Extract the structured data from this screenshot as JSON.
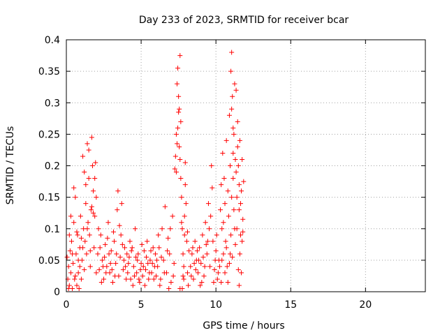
{
  "chart_data": {
    "type": "scatter",
    "title": "Day 233 of 2023, SRMTID for receiver bcar",
    "xlabel": "GPS time / hours",
    "ylabel": "SRMTID / TECUs",
    "xlim": [
      0,
      24
    ],
    "ylim": [
      0,
      0.4
    ],
    "xticks": [
      0,
      5,
      10,
      15,
      20
    ],
    "xtick_labels": [
      "0",
      "5",
      "10",
      "15",
      "20"
    ],
    "yticks": [
      0,
      0.05,
      0.1,
      0.15,
      0.2,
      0.25,
      0.3,
      0.35,
      0.4
    ],
    "ytick_labels": [
      "0",
      "0.05",
      "0.1",
      "0.15",
      "0.2",
      "0.25",
      "0.3",
      "0.35",
      "0.4"
    ],
    "grid": true,
    "marker": "+",
    "marker_color": "#ff0000",
    "series": [
      {
        "name": "SRMTID",
        "points": [
          [
            0.05,
            0.055
          ],
          [
            0.1,
            0.02
          ],
          [
            0.15,
            0.04
          ],
          [
            0.2,
            0.01
          ],
          [
            0.25,
            0.065
          ],
          [
            0.3,
            0.03
          ],
          [
            0.35,
            0.08
          ],
          [
            0.4,
            0.005
          ],
          [
            0.45,
            0.045
          ],
          [
            0.5,
            0.11
          ],
          [
            0.55,
            0.02
          ],
          [
            0.6,
            0.15
          ],
          [
            0.65,
            0.06
          ],
          [
            0.7,
            0.01
          ],
          [
            0.75,
            0.09
          ],
          [
            0.8,
            0.03
          ],
          [
            0.85,
            0.005
          ],
          [
            0.9,
            0.07
          ],
          [
            0.95,
            0.12
          ],
          [
            1.0,
            0.02
          ],
          [
            1.05,
            0.05
          ],
          [
            1.1,
            0.215
          ],
          [
            1.15,
            0.1
          ],
          [
            1.2,
            0.035
          ],
          [
            1.25,
            0.08
          ],
          [
            1.3,
            0.14
          ],
          [
            1.35,
            0.06
          ],
          [
            1.4,
            0.235
          ],
          [
            1.45,
            0.11
          ],
          [
            1.5,
            0.18
          ],
          [
            1.55,
            0.09
          ],
          [
            1.6,
            0.04
          ],
          [
            1.65,
            0.13
          ],
          [
            1.7,
            0.245
          ],
          [
            1.75,
            0.2
          ],
          [
            1.8,
            0.16
          ],
          [
            1.85,
            0.07
          ],
          [
            1.9,
            0.12
          ],
          [
            1.95,
            0.205
          ],
          [
            2.0,
            0.03
          ],
          [
            0.3,
            0.12
          ],
          [
            0.5,
            0.165
          ],
          [
            0.7,
            0.095
          ],
          [
            0.9,
            0.04
          ],
          [
            1.1,
            0.07
          ],
          [
            1.3,
            0.17
          ],
          [
            1.5,
            0.225
          ],
          [
            1.7,
            0.135
          ],
          [
            1.9,
            0.18
          ],
          [
            2.0,
            0.15
          ],
          [
            0.2,
            0.09
          ],
          [
            0.4,
            0.06
          ],
          [
            0.6,
            0.025
          ],
          [
            0.8,
            0.05
          ],
          [
            1.0,
            0.085
          ],
          [
            1.2,
            0.19
          ],
          [
            1.4,
            0.1
          ],
          [
            1.6,
            0.065
          ],
          [
            1.8,
            0.125
          ],
          [
            0.15,
            0.005
          ],
          [
            2.1,
            0.06
          ],
          [
            2.2,
            0.035
          ],
          [
            2.3,
            0.09
          ],
          [
            2.4,
            0.05
          ],
          [
            2.5,
            0.02
          ],
          [
            2.6,
            0.075
          ],
          [
            2.7,
            0.04
          ],
          [
            2.8,
            0.11
          ],
          [
            2.9,
            0.03
          ],
          [
            3.0,
            0.065
          ],
          [
            3.1,
            0.015
          ],
          [
            3.2,
            0.08
          ],
          [
            3.3,
            0.045
          ],
          [
            3.4,
            0.13
          ],
          [
            3.5,
            0.025
          ],
          [
            3.6,
            0.055
          ],
          [
            3.7,
            0.14
          ],
          [
            3.8,
            0.035
          ],
          [
            3.9,
            0.07
          ],
          [
            4.0,
            0.02
          ],
          [
            2.15,
            0.1
          ],
          [
            2.35,
            0.015
          ],
          [
            2.55,
            0.055
          ],
          [
            2.75,
            0.085
          ],
          [
            2.95,
            0.045
          ],
          [
            3.15,
            0.095
          ],
          [
            3.35,
            0.06
          ],
          [
            3.55,
            0.105
          ],
          [
            3.75,
            0.075
          ],
          [
            3.95,
            0.04
          ],
          [
            2.25,
            0.07
          ],
          [
            2.45,
            0.04
          ],
          [
            2.65,
            0.03
          ],
          [
            2.85,
            0.06
          ],
          [
            3.05,
            0.035
          ],
          [
            3.25,
            0.025
          ],
          [
            3.45,
            0.16
          ],
          [
            3.65,
            0.09
          ],
          [
            3.85,
            0.05
          ],
          [
            4.05,
            0.06
          ],
          [
            4.1,
            0.03
          ],
          [
            4.2,
            0.055
          ],
          [
            4.3,
            0.02
          ],
          [
            4.4,
            0.07
          ],
          [
            4.5,
            0.04
          ],
          [
            4.6,
            0.1
          ],
          [
            4.7,
            0.03
          ],
          [
            4.8,
            0.06
          ],
          [
            4.9,
            0.015
          ],
          [
            5.0,
            0.045
          ],
          [
            5.1,
            0.025
          ],
          [
            5.2,
            0.065
          ],
          [
            5.3,
            0.035
          ],
          [
            5.4,
            0.08
          ],
          [
            5.5,
            0.02
          ],
          [
            5.6,
            0.05
          ],
          [
            5.7,
            0.03
          ],
          [
            5.8,
            0.07
          ],
          [
            5.9,
            0.04
          ],
          [
            6.0,
            0.025
          ],
          [
            4.15,
            0.045
          ],
          [
            4.35,
            0.065
          ],
          [
            4.55,
            0.025
          ],
          [
            4.75,
            0.05
          ],
          [
            4.95,
            0.035
          ],
          [
            5.15,
            0.04
          ],
          [
            5.35,
            0.055
          ],
          [
            5.55,
            0.03
          ],
          [
            5.75,
            0.045
          ],
          [
            5.95,
            0.06
          ],
          [
            4.25,
            0.08
          ],
          [
            4.45,
            0.01
          ],
          [
            4.65,
            0.055
          ],
          [
            4.85,
            0.02
          ],
          [
            5.05,
            0.075
          ],
          [
            5.25,
            0.01
          ],
          [
            5.45,
            0.045
          ],
          [
            5.65,
            0.065
          ],
          [
            5.85,
            0.02
          ],
          [
            6.05,
            0.05
          ],
          [
            6.1,
            0.04
          ],
          [
            6.2,
            0.07
          ],
          [
            6.3,
            0.02
          ],
          [
            6.4,
            0.1
          ],
          [
            6.5,
            0.05
          ],
          [
            6.6,
            0.135
          ],
          [
            6.7,
            0.03
          ],
          [
            6.8,
            0.085
          ],
          [
            6.9,
            0.06
          ],
          [
            7.0,
            0.015
          ],
          [
            7.1,
            0.12
          ],
          [
            7.2,
            0.045
          ],
          [
            6.15,
            0.09
          ],
          [
            6.35,
            0.055
          ],
          [
            6.55,
            0.03
          ],
          [
            6.75,
            0.065
          ],
          [
            6.95,
            0.1
          ],
          [
            7.15,
            0.025
          ],
          [
            6.25,
            0.01
          ],
          [
            6.85,
            0.005
          ],
          [
            7.25,
            0.195
          ],
          [
            7.3,
            0.215
          ],
          [
            7.35,
            0.25
          ],
          [
            7.4,
            0.33
          ],
          [
            7.45,
            0.355
          ],
          [
            7.5,
            0.31
          ],
          [
            7.55,
            0.29
          ],
          [
            7.6,
            0.375
          ],
          [
            7.65,
            0.27
          ],
          [
            7.7,
            0.15
          ],
          [
            7.75,
            0.1
          ],
          [
            7.8,
            0.06
          ],
          [
            7.85,
            0.04
          ],
          [
            7.9,
            0.12
          ],
          [
            7.95,
            0.205
          ],
          [
            8.0,
            0.14
          ],
          [
            8.05,
            0.08
          ],
          [
            8.1,
            0.03
          ],
          [
            8.15,
            0.01
          ],
          [
            7.45,
            0.26
          ],
          [
            7.55,
            0.23
          ],
          [
            7.65,
            0.18
          ],
          [
            7.35,
            0.19
          ],
          [
            7.5,
            0.285
          ],
          [
            7.6,
            0.21
          ],
          [
            7.7,
            0.11
          ],
          [
            7.8,
            0.025
          ],
          [
            7.9,
            0.09
          ],
          [
            7.95,
            0.17
          ],
          [
            8.2,
            0.065
          ],
          [
            7.6,
            0.005
          ],
          [
            7.75,
            0.005
          ],
          [
            7.85,
            0.02
          ],
          [
            8.1,
            0.095
          ],
          [
            7.4,
            0.235
          ],
          [
            8.3,
            0.04
          ],
          [
            8.4,
            0.06
          ],
          [
            8.5,
            0.02
          ],
          [
            8.6,
            0.08
          ],
          [
            8.7,
            0.05
          ],
          [
            8.8,
            0.03
          ],
          [
            8.9,
            0.07
          ],
          [
            9.0,
            0.045
          ],
          [
            9.1,
            0.09
          ],
          [
            9.2,
            0.025
          ],
          [
            9.3,
            0.11
          ],
          [
            9.4,
            0.06
          ],
          [
            9.5,
            0.14
          ],
          [
            9.6,
            0.04
          ],
          [
            9.7,
            0.2
          ],
          [
            9.8,
            0.08
          ],
          [
            9.9,
            0.035
          ],
          [
            10.0,
            0.065
          ],
          [
            10.1,
            0.02
          ],
          [
            10.2,
            0.05
          ],
          [
            8.35,
            0.025
          ],
          [
            8.55,
            0.045
          ],
          [
            8.75,
            0.065
          ],
          [
            8.95,
            0.01
          ],
          [
            9.15,
            0.055
          ],
          [
            9.35,
            0.075
          ],
          [
            9.55,
            0.1
          ],
          [
            9.75,
            0.165
          ],
          [
            9.95,
            0.05
          ],
          [
            10.15,
            0.03
          ],
          [
            8.45,
            0.07
          ],
          [
            8.65,
            0.035
          ],
          [
            8.85,
            0.05
          ],
          [
            9.05,
            0.015
          ],
          [
            9.25,
            0.04
          ],
          [
            9.45,
            0.08
          ],
          [
            9.65,
            0.12
          ],
          [
            9.85,
            0.015
          ],
          [
            10.05,
            0.09
          ],
          [
            10.25,
            0.04
          ],
          [
            10.3,
            0.13
          ],
          [
            10.35,
            0.17
          ],
          [
            10.4,
            0.1
          ],
          [
            10.45,
            0.22
          ],
          [
            10.5,
            0.06
          ],
          [
            10.55,
            0.18
          ],
          [
            10.6,
            0.14
          ],
          [
            10.65,
            0.08
          ],
          [
            10.7,
            0.24
          ],
          [
            10.75,
            0.04
          ],
          [
            10.8,
            0.16
          ],
          [
            10.85,
            0.12
          ],
          [
            10.9,
            0.28
          ],
          [
            10.95,
            0.06
          ],
          [
            11.0,
            0.35
          ],
          [
            11.05,
            0.38
          ],
          [
            11.1,
            0.31
          ],
          [
            11.15,
            0.18
          ],
          [
            11.2,
            0.25
          ],
          [
            11.25,
            0.1
          ],
          [
            11.3,
            0.21
          ],
          [
            11.35,
            0.32
          ],
          [
            11.4,
            0.15
          ],
          [
            11.45,
            0.27
          ],
          [
            11.5,
            0.2
          ],
          [
            11.55,
            0.13
          ],
          [
            11.6,
            0.24
          ],
          [
            11.65,
            0.09
          ],
          [
            11.7,
            0.16
          ],
          [
            11.75,
            0.21
          ],
          [
            11.8,
            0.115
          ],
          [
            11.85,
            0.175
          ],
          [
            11.05,
            0.29
          ],
          [
            11.15,
            0.22
          ],
          [
            11.25,
            0.33
          ],
          [
            11.35,
            0.19
          ],
          [
            11.45,
            0.23
          ],
          [
            11.55,
            0.17
          ],
          [
            11.65,
            0.14
          ],
          [
            11.75,
            0.08
          ],
          [
            10.4,
            0.05
          ],
          [
            10.5,
            0.11
          ],
          [
            10.6,
            0.03
          ],
          [
            10.7,
            0.07
          ],
          [
            10.8,
            0.015
          ],
          [
            10.9,
            0.045
          ],
          [
            11.0,
            0.09
          ],
          [
            11.1,
            0.055
          ],
          [
            11.2,
            0.13
          ],
          [
            11.3,
            0.075
          ],
          [
            11.4,
            0.1
          ],
          [
            11.5,
            0.035
          ],
          [
            11.6,
            0.06
          ],
          [
            11.7,
            0.03
          ],
          [
            11.8,
            0.095
          ],
          [
            10.95,
            0.2
          ],
          [
            11.05,
            0.15
          ],
          [
            11.15,
            0.26
          ],
          [
            10.35,
            0.015
          ],
          [
            11.55,
            0.01
          ]
        ]
      }
    ]
  }
}
